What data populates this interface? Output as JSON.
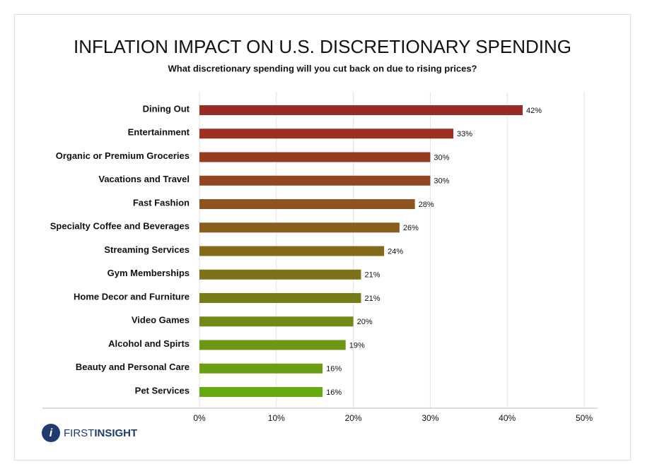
{
  "chart_data": {
    "type": "hbar",
    "title": "INFLATION IMPACT ON U.S. DISCRETIONARY SPENDING",
    "subtitle": "What discretionary spending will you cut back on due to rising prices?",
    "categories": [
      "Dining Out",
      "Entertainment",
      "Organic or Premium Groceries",
      "Vacations and Travel",
      "Fast Fashion",
      "Specialty Coffee and Beverages",
      "Streaming Services",
      "Gym Memberships",
      "Home Decor and Furniture",
      "Video Games",
      "Alcohol and Spirts",
      "Beauty and Personal Care",
      "Pet Services"
    ],
    "values": [
      42,
      33,
      30,
      30,
      28,
      26,
      24,
      21,
      21,
      20,
      19,
      16,
      16
    ],
    "value_labels": [
      "42%",
      "33%",
      "30%",
      "30%",
      "28%",
      "26%",
      "24%",
      "21%",
      "21%",
      "20%",
      "19%",
      "16%",
      "16%"
    ],
    "colors": [
      "#9b2a24",
      "#9c3024",
      "#973a22",
      "#934720",
      "#8e5420",
      "#8a5f1e",
      "#84691a",
      "#7c7218",
      "#767d16",
      "#738915",
      "#6c9613",
      "#6a9f12",
      "#66a811"
    ],
    "xlim": [
      0,
      50
    ],
    "xticks": [
      {
        "value": 0,
        "label": "0%"
      },
      {
        "value": 10,
        "label": "10%"
      },
      {
        "value": 20,
        "label": "20%"
      },
      {
        "value": 30,
        "label": "30%"
      },
      {
        "value": 40,
        "label": "40%"
      },
      {
        "value": 50,
        "label": "50%"
      }
    ],
    "grid": true
  },
  "logo": {
    "first": "FIRST",
    "second": "INSIGHT"
  }
}
